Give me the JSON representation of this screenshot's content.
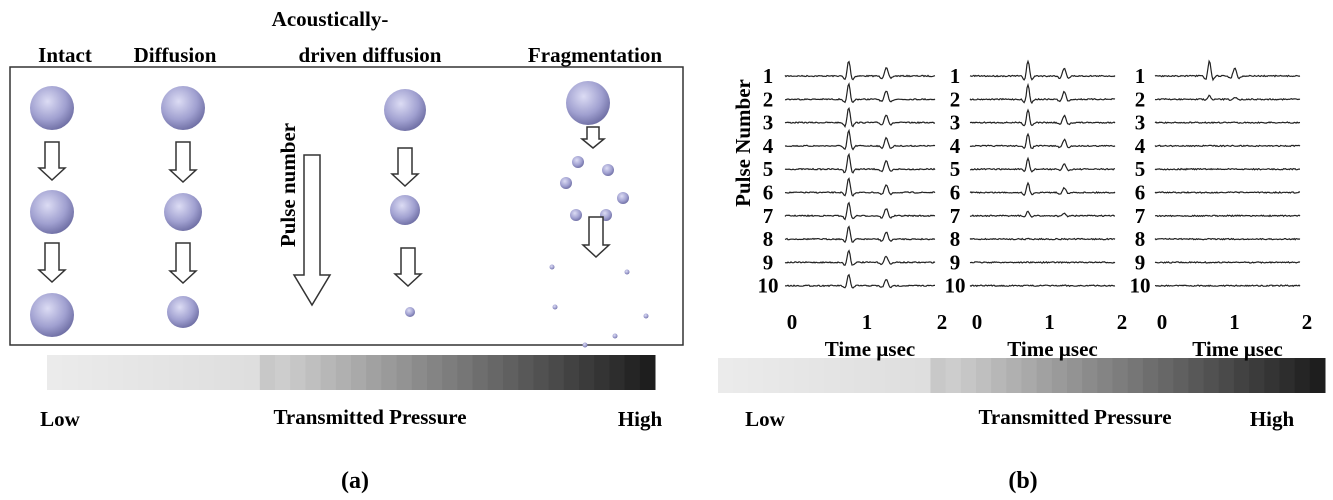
{
  "panel_a": {
    "column_titles": [
      "Intact",
      "Diffusion",
      "Acoustically-",
      "driven diffusion",
      "Fragmentation"
    ],
    "arrow_label": "Pulse number",
    "scale": {
      "low": "Low",
      "middle": "Transmitted Pressure",
      "high": "High"
    },
    "caption": "(a)"
  },
  "panel_b": {
    "y_label": "Pulse Number",
    "plots": [
      {
        "pulse_labels": [
          "1",
          "2",
          "3",
          "4",
          "5",
          "6",
          "7",
          "8",
          "9",
          "10"
        ],
        "x_ticks": [
          "0",
          "1",
          "2"
        ],
        "x_label": "Time µsec"
      },
      {
        "pulse_labels": [
          "1",
          "2",
          "3",
          "4",
          "5",
          "6",
          "7",
          "8",
          "9",
          "10"
        ],
        "x_ticks": [
          "0",
          "1",
          "2"
        ],
        "x_label": "Time µsec"
      },
      {
        "pulse_labels": [
          "1",
          "2",
          "3",
          "4",
          "5",
          "6",
          "7",
          "8",
          "9",
          "10"
        ],
        "x_ticks": [
          "0",
          "1",
          "2"
        ],
        "x_label": "Time µsec"
      }
    ],
    "scale": {
      "low": "Low",
      "middle": "Transmitted Pressure",
      "high": "High"
    },
    "caption": "(b)"
  }
}
